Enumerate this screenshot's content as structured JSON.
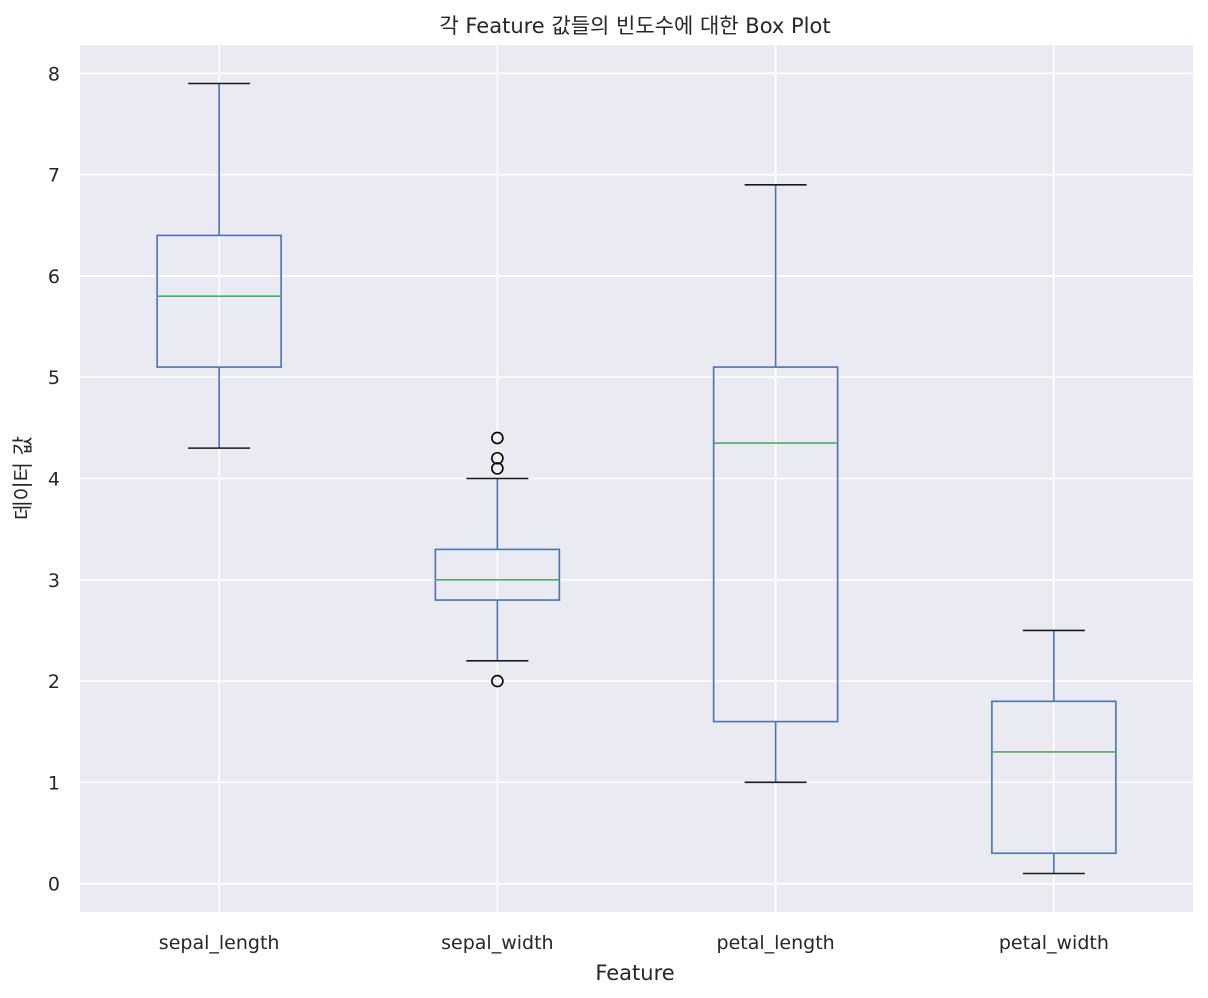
{
  "chart_data": {
    "type": "box",
    "title": "각 Feature 값들의 빈도수에 대한 Box Plot",
    "xlabel": "Feature",
    "ylabel": "데이터 값",
    "ylim": [
      -0.28,
      8.28
    ],
    "yticks": [
      0,
      1,
      2,
      3,
      4,
      5,
      6,
      7,
      8
    ],
    "grid": true,
    "categories": [
      "sepal_length",
      "sepal_width",
      "petal_length",
      "petal_width"
    ],
    "boxes": [
      {
        "name": "sepal_length",
        "whisker_low": 4.3,
        "q1": 5.1,
        "median": 5.8,
        "q3": 6.4,
        "whisker_high": 7.9,
        "fliers": []
      },
      {
        "name": "sepal_width",
        "whisker_low": 2.2,
        "q1": 2.8,
        "median": 3.0,
        "q3": 3.3,
        "whisker_high": 4.0,
        "fliers": [
          4.4,
          4.1,
          4.2,
          2.0
        ]
      },
      {
        "name": "petal_length",
        "whisker_low": 1.0,
        "q1": 1.6,
        "median": 4.35,
        "q3": 5.1,
        "whisker_high": 6.9,
        "fliers": []
      },
      {
        "name": "petal_width",
        "whisker_low": 0.1,
        "q1": 0.3,
        "median": 1.3,
        "q3": 1.8,
        "whisker_high": 2.5,
        "fliers": []
      }
    ],
    "colors": {
      "background": "#eaeaf2",
      "box": "#4c72b0",
      "median": "#55a868",
      "cap": "#1a1a1a",
      "flier": "#000000"
    }
  }
}
